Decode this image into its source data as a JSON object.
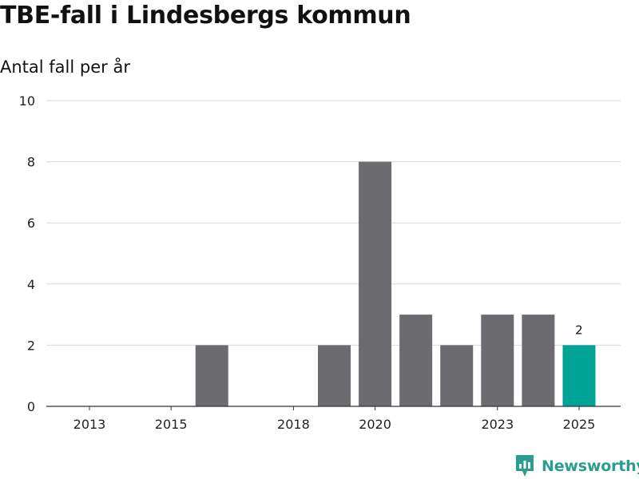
{
  "header": {
    "title": "TBE-fall i Lindesbergs kommun",
    "subtitle": "Antal fall per år"
  },
  "brand": {
    "name": "Newsworthy",
    "color": "#2a9d8f"
  },
  "colors": {
    "bar": "#6c6b70",
    "highlight": "#00a497",
    "grid": "#d9d9d9",
    "axis": "#333333"
  },
  "chart_data": {
    "type": "bar",
    "title": "TBE-fall i Lindesbergs kommun",
    "subtitle": "Antal fall per år",
    "xlabel": "",
    "ylabel": "",
    "categories": [
      2013,
      2014,
      2015,
      2016,
      2017,
      2018,
      2019,
      2020,
      2021,
      2022,
      2023,
      2024,
      2025
    ],
    "values": [
      0,
      0,
      0,
      2,
      0,
      0,
      2,
      8,
      3,
      2,
      3,
      3,
      2
    ],
    "highlight": [
      2025
    ],
    "data_labels": [
      {
        "category": 2025,
        "text": "2"
      }
    ],
    "x_ticks": [
      2013,
      2015,
      2018,
      2020,
      2023,
      2025
    ],
    "y_ticks": [
      0,
      2,
      4,
      6,
      8,
      10
    ],
    "ylim": [
      0,
      10
    ],
    "grid": true,
    "legend": "none"
  }
}
